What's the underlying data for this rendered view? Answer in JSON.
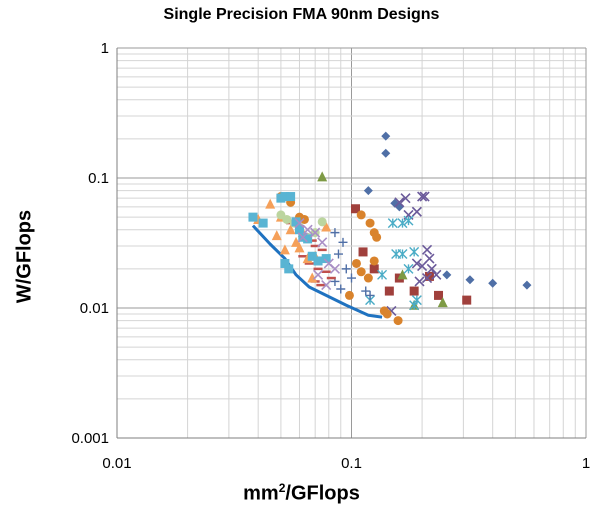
{
  "chart_data": {
    "type": "scatter",
    "title": "Single Precision FMA 90nm Designs",
    "xlabel_main": "mm",
    "xlabel_sup": "2",
    "xlabel_tail": "/GFlops",
    "ylabel": "W/GFlops",
    "xscale": "log",
    "yscale": "log",
    "xlim": [
      0.01,
      1
    ],
    "ylim": [
      0.001,
      1
    ],
    "xticks": [
      {
        "value": 0.01,
        "label": "0.01"
      },
      {
        "value": 0.1,
        "label": "0.1"
      },
      {
        "value": 1,
        "label": "1"
      }
    ],
    "yticks": [
      {
        "value": 0.001,
        "label": "0.001"
      },
      {
        "value": 0.01,
        "label": "0.01"
      },
      {
        "value": 0.1,
        "label": "0.1"
      },
      {
        "value": 1,
        "label": "1"
      }
    ],
    "grid": true,
    "legend": "none",
    "series": [
      {
        "marker": "diamond",
        "color": "#4f6fa6",
        "x": [
          0.14,
          0.14,
          0.118,
          0.153,
          0.16,
          0.255,
          0.32,
          0.4,
          0.56
        ],
        "y": [
          0.21,
          0.155,
          0.08,
          0.064,
          0.06,
          0.018,
          0.0165,
          0.0155,
          0.015
        ]
      },
      {
        "marker": "square",
        "color": "#a0403c",
        "x": [
          0.104,
          0.112,
          0.125,
          0.145,
          0.16,
          0.185,
          0.215,
          0.235,
          0.31
        ],
        "y": [
          0.058,
          0.027,
          0.02,
          0.0135,
          0.017,
          0.0135,
          0.0175,
          0.0125,
          0.0115
        ]
      },
      {
        "marker": "triangle",
        "color": "#7e9a45",
        "x": [
          0.075,
          0.165,
          0.185,
          0.245
        ],
        "y": [
          0.102,
          0.018,
          0.0105,
          0.011
        ]
      },
      {
        "marker": "x",
        "color": "#6b5a9a",
        "x": [
          0.16,
          0.17,
          0.175,
          0.19,
          0.2,
          0.205,
          0.21,
          0.215,
          0.2,
          0.22,
          0.19,
          0.21,
          0.23,
          0.195,
          0.148
        ],
        "y": [
          0.065,
          0.07,
          0.052,
          0.055,
          0.072,
          0.072,
          0.028,
          0.024,
          0.021,
          0.02,
          0.022,
          0.017,
          0.018,
          0.016,
          0.0095
        ]
      },
      {
        "marker": "star",
        "color": "#4aacc6",
        "x": [
          0.15,
          0.165,
          0.175,
          0.155,
          0.165,
          0.185,
          0.135,
          0.12,
          0.175,
          0.185,
          0.19
        ],
        "y": [
          0.045,
          0.045,
          0.047,
          0.026,
          0.026,
          0.027,
          0.018,
          0.0115,
          0.02,
          0.0105,
          0.0115
        ]
      },
      {
        "marker": "circle",
        "color": "#d9832c",
        "x": [
          0.05,
          0.055,
          0.06,
          0.063,
          0.11,
          0.12,
          0.125,
          0.128,
          0.125,
          0.105,
          0.11,
          0.118,
          0.098,
          0.138,
          0.142,
          0.158
        ],
        "y": [
          0.072,
          0.065,
          0.05,
          0.048,
          0.052,
          0.045,
          0.038,
          0.035,
          0.023,
          0.022,
          0.019,
          0.017,
          0.0125,
          0.0095,
          0.009,
          0.008
        ]
      },
      {
        "marker": "plus",
        "color": "#4f6fa6",
        "x": [
          0.085,
          0.092,
          0.088,
          0.095,
          0.1,
          0.085,
          0.09,
          0.115,
          0.12
        ],
        "y": [
          0.038,
          0.032,
          0.026,
          0.02,
          0.017,
          0.016,
          0.014,
          0.0135,
          0.0125
        ]
      },
      {
        "marker": "dash",
        "color": "#c0504d",
        "x": [
          0.055,
          0.06,
          0.068,
          0.07,
          0.075,
          0.062,
          0.066,
          0.072,
          0.078,
          0.082,
          0.07,
          0.074
        ],
        "y": [
          0.045,
          0.04,
          0.033,
          0.03,
          0.028,
          0.025,
          0.022,
          0.02,
          0.019,
          0.017,
          0.016,
          0.015
        ]
      },
      {
        "marker": "triangle",
        "color": "#f5a05a",
        "x": [
          0.04,
          0.045,
          0.05,
          0.055,
          0.058,
          0.048,
          0.052,
          0.06,
          0.065,
          0.07,
          0.078,
          0.062,
          0.068
        ],
        "y": [
          0.048,
          0.063,
          0.05,
          0.04,
          0.032,
          0.036,
          0.028,
          0.029,
          0.024,
          0.025,
          0.042,
          0.038,
          0.017
        ]
      },
      {
        "marker": "circle",
        "color": "#bcd59f",
        "x": [
          0.05,
          0.053,
          0.057,
          0.06,
          0.075,
          0.07,
          0.065
        ],
        "y": [
          0.052,
          0.048,
          0.045,
          0.042,
          0.046,
          0.038,
          0.035
        ]
      },
      {
        "marker": "square",
        "color": "#59b4d3",
        "x": [
          0.038,
          0.042,
          0.05,
          0.052,
          0.055,
          0.058,
          0.06,
          0.062,
          0.065,
          0.068,
          0.072,
          0.078,
          0.052,
          0.054
        ],
        "y": [
          0.05,
          0.045,
          0.07,
          0.072,
          0.072,
          0.046,
          0.04,
          0.035,
          0.034,
          0.025,
          0.023,
          0.024,
          0.022,
          0.02
        ]
      },
      {
        "marker": "x",
        "color": "#a98fc5",
        "x": [
          0.06,
          0.065,
          0.07,
          0.075,
          0.08,
          0.085,
          0.062,
          0.072,
          0.078
        ],
        "y": [
          0.045,
          0.04,
          0.038,
          0.032,
          0.022,
          0.02,
          0.035,
          0.018,
          0.015
        ]
      }
    ],
    "frontier": {
      "color": "#1f72c0",
      "x": [
        0.038,
        0.045,
        0.052,
        0.058,
        0.066,
        0.078,
        0.095,
        0.118,
        0.135
      ],
      "y": [
        0.043,
        0.031,
        0.024,
        0.018,
        0.0145,
        0.0125,
        0.0105,
        0.0088,
        0.0085
      ]
    }
  }
}
